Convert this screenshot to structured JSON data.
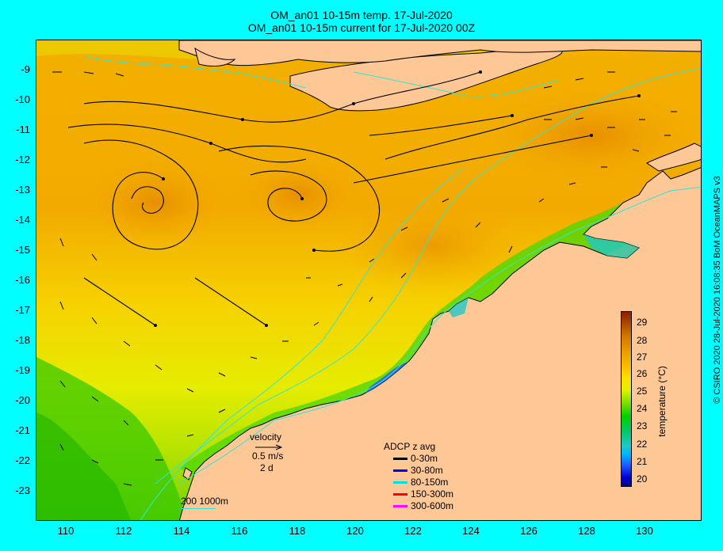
{
  "title": {
    "line1": "OM_an01 10-15m temp. 17-Jul-2020",
    "line2": "OM_an01 10-15m current for 17-Jul-2020 00Z"
  },
  "map": {
    "lon_range": [
      109,
      132
    ],
    "lat_range": [
      -24.2,
      -8.2
    ],
    "x_ticks": [
      "110",
      "112",
      "114",
      "116",
      "118",
      "120",
      "122",
      "124",
      "126",
      "128",
      "130"
    ],
    "y_ticks": [
      "-9",
      "-10",
      "-11",
      "-12",
      "-13",
      "-14",
      "-15",
      "-16",
      "-17",
      "-18",
      "-19",
      "-20",
      "-21",
      "-22",
      "-23"
    ],
    "land_color": "#fdc896",
    "isobath_color": "#30e6d2"
  },
  "velocity_legend": {
    "title": "velocity",
    "speed": "0.5 m/s",
    "duration": "2 d"
  },
  "isobath_legend": {
    "label": "200  1000m"
  },
  "adcp_legend": {
    "title": "ADCP z avg",
    "rows": [
      {
        "label": "0-30m",
        "color": "#000000"
      },
      {
        "label": "30-80m",
        "color": "#0000ff"
      },
      {
        "label": "80-150m",
        "color": "#00e0e0"
      },
      {
        "label": "150-300m",
        "color": "#ff0000"
      },
      {
        "label": "300-600m",
        "color": "#ff00ff"
      }
    ]
  },
  "colorbar": {
    "title": "temperature (°C)",
    "labels": [
      "29",
      "28",
      "27",
      "26",
      "25",
      "24",
      "23",
      "22",
      "21",
      "20"
    ]
  },
  "credit": "© CSIRO 2020  28-Jul-2020 16:08:35 BoM OceanMAPS v3"
}
